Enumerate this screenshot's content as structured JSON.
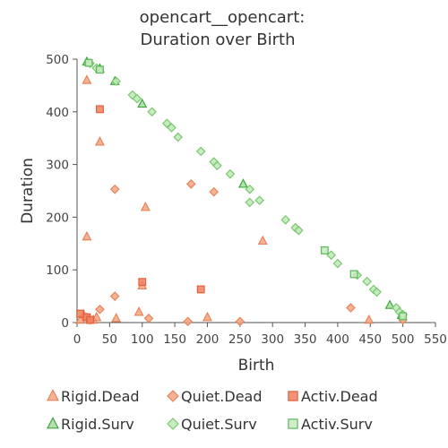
{
  "chart_data": {
    "type": "scatter",
    "title_line1": "opencart__opencart:",
    "title_line2": "Duration over Birth",
    "xlabel": "Birth",
    "ylabel": "Duration",
    "xlim": [
      0,
      550
    ],
    "ylim": [
      0,
      500
    ],
    "xticks": [
      "0",
      "50",
      "100",
      "150",
      "200",
      "250",
      "300",
      "350",
      "400",
      "450",
      "500",
      "550"
    ],
    "yticks": [
      "0",
      "100",
      "200",
      "300",
      "400",
      "500"
    ],
    "grid": false,
    "legend_position": "bottom",
    "series": [
      {
        "name": "Rigid.Dead",
        "marker": "triangle",
        "color": "#f4a582",
        "stroke": "#e8845a",
        "points": [
          [
            15,
            460
          ],
          [
            35,
            343
          ],
          [
            15,
            163
          ],
          [
            105,
            219
          ],
          [
            285,
            155
          ],
          [
            60,
            8
          ],
          [
            95,
            20
          ],
          [
            100,
            70
          ],
          [
            200,
            10
          ],
          [
            5,
            5
          ],
          [
            10,
            15
          ],
          [
            25,
            5
          ],
          [
            30,
            10
          ],
          [
            448,
            5
          ]
        ]
      },
      {
        "name": "Quiet.Dead",
        "marker": "diamond",
        "color": "#f4a582",
        "stroke": "#e8845a",
        "points": [
          [
            58,
            253
          ],
          [
            175,
            263
          ],
          [
            210,
            248
          ],
          [
            58,
            50
          ],
          [
            35,
            25
          ],
          [
            110,
            8
          ],
          [
            170,
            2
          ],
          [
            250,
            2
          ],
          [
            420,
            28
          ],
          [
            500,
            5
          ],
          [
            15,
            10
          ],
          [
            20,
            5
          ]
        ]
      },
      {
        "name": "Activ.Dead",
        "marker": "square",
        "color": "#f08060",
        "stroke": "#e0603c",
        "points": [
          [
            35,
            405
          ],
          [
            100,
            77
          ],
          [
            190,
            63
          ],
          [
            5,
            17
          ],
          [
            15,
            10
          ],
          [
            20,
            5
          ]
        ]
      },
      {
        "name": "Rigid.Surv",
        "marker": "triangle",
        "color": "#a8dba0",
        "stroke": "#3da83d",
        "points": [
          [
            15,
            495
          ],
          [
            35,
            482
          ],
          [
            58,
            458
          ],
          [
            100,
            415
          ],
          [
            255,
            263
          ],
          [
            480,
            33
          ],
          [
            498,
            14
          ]
        ]
      },
      {
        "name": "Quiet.Surv",
        "marker": "diamond",
        "color": "#c0e8b8",
        "stroke": "#7cc870",
        "points": [
          [
            20,
            492
          ],
          [
            30,
            483
          ],
          [
            60,
            458
          ],
          [
            85,
            432
          ],
          [
            92,
            425
          ],
          [
            115,
            400
          ],
          [
            138,
            378
          ],
          [
            145,
            370
          ],
          [
            155,
            352
          ],
          [
            190,
            325
          ],
          [
            210,
            305
          ],
          [
            215,
            298
          ],
          [
            235,
            282
          ],
          [
            265,
            253
          ],
          [
            265,
            228
          ],
          [
            280,
            232
          ],
          [
            320,
            195
          ],
          [
            335,
            180
          ],
          [
            340,
            175
          ],
          [
            390,
            128
          ],
          [
            400,
            112
          ],
          [
            430,
            90
          ],
          [
            445,
            78
          ],
          [
            455,
            63
          ],
          [
            460,
            58
          ],
          [
            490,
            28
          ],
          [
            495,
            20
          ],
          [
            500,
            15
          ]
        ]
      },
      {
        "name": "Activ.Surv",
        "marker": "square",
        "color": "#c8eac0",
        "stroke": "#5cb85c",
        "points": [
          [
            18,
            493
          ],
          [
            35,
            480
          ],
          [
            380,
            137
          ],
          [
            425,
            92
          ],
          [
            500,
            12
          ]
        ]
      }
    ]
  }
}
